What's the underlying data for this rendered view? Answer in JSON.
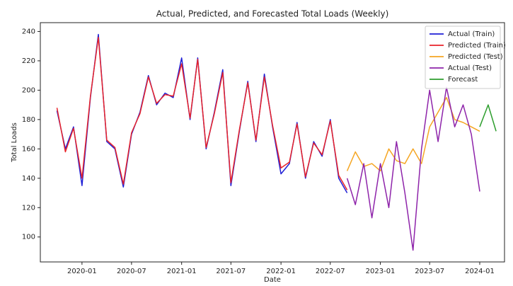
{
  "chart_data": {
    "type": "line",
    "title": "Actual, Predicted, and Forecasted Total Loads (Weekly)",
    "x_label": "Date",
    "y_label": "Total Loads",
    "xlim": [
      "2019-08",
      "2024-04"
    ],
    "xticks": [
      "2020-01",
      "2020-07",
      "2021-01",
      "2021-07",
      "2022-01",
      "2022-07",
      "2023-01",
      "2023-07",
      "2024-01"
    ],
    "ylim": [
      83,
      246
    ],
    "yticks": [
      100,
      120,
      140,
      160,
      180,
      200,
      220,
      240
    ],
    "legend": "upper right",
    "series": [
      {
        "name": "Actual (Train)",
        "color": "#1f1fd6",
        "x": [
          "2019-10",
          "2019-11",
          "2019-12",
          "2020-01",
          "2020-02",
          "2020-03",
          "2020-04",
          "2020-05",
          "2020-06",
          "2020-07",
          "2020-08",
          "2020-09",
          "2020-10",
          "2020-11",
          "2020-12",
          "2021-01",
          "2021-02",
          "2021-03",
          "2021-04",
          "2021-05",
          "2021-06",
          "2021-07",
          "2021-08",
          "2021-09",
          "2021-10",
          "2021-11",
          "2021-12",
          "2022-01",
          "2022-02",
          "2022-03",
          "2022-04",
          "2022-05",
          "2022-06",
          "2022-07",
          "2022-08",
          "2022-09"
        ],
        "values": [
          186,
          160,
          175,
          135,
          195,
          238,
          165,
          160,
          134,
          170,
          185,
          210,
          190,
          198,
          195,
          222,
          180,
          222,
          160,
          185,
          214,
          135,
          172,
          206,
          165,
          211,
          175,
          143,
          150,
          178,
          140,
          165,
          155,
          180,
          140,
          130
        ]
      },
      {
        "name": "Predicted (Train)",
        "color": "#e8232a",
        "x": [
          "2019-10",
          "2019-11",
          "2019-12",
          "2020-01",
          "2020-02",
          "2020-03",
          "2020-04",
          "2020-05",
          "2020-06",
          "2020-07",
          "2020-08",
          "2020-09",
          "2020-10",
          "2020-11",
          "2020-12",
          "2021-01",
          "2021-02",
          "2021-03",
          "2021-04",
          "2021-05",
          "2021-06",
          "2021-07",
          "2021-08",
          "2021-09",
          "2021-10",
          "2021-11",
          "2021-12",
          "2022-01",
          "2022-02",
          "2022-03",
          "2022-04",
          "2022-05",
          "2022-06",
          "2022-07",
          "2022-08",
          "2022-09"
        ],
        "values": [
          188,
          158,
          174,
          140,
          196,
          236,
          166,
          161,
          136,
          171,
          184,
          209,
          191,
          197,
          196,
          218,
          181,
          221,
          161,
          184,
          212,
          137,
          173,
          205,
          166,
          209,
          176,
          147,
          151,
          177,
          141,
          164,
          156,
          179,
          142,
          132
        ]
      },
      {
        "name": "Predicted (Test)",
        "color": "#f5a623",
        "x": [
          "2022-09",
          "2022-10",
          "2022-11",
          "2022-12",
          "2023-01",
          "2023-02",
          "2023-03",
          "2023-04",
          "2023-05",
          "2023-06",
          "2023-07",
          "2023-08",
          "2023-09",
          "2023-10",
          "2023-11",
          "2023-12",
          "2024-01"
        ],
        "values": [
          145,
          158,
          148,
          150,
          145,
          160,
          152,
          150,
          160,
          150,
          175,
          185,
          195,
          180,
          178,
          175,
          172
        ]
      },
      {
        "name": "Actual (Test)",
        "color": "#8e24aa",
        "x": [
          "2022-09",
          "2022-10",
          "2022-11",
          "2022-12",
          "2023-01",
          "2023-02",
          "2023-03",
          "2023-04",
          "2023-05",
          "2023-06",
          "2023-07",
          "2023-08",
          "2023-09",
          "2023-10",
          "2023-11",
          "2023-12",
          "2024-01"
        ],
        "values": [
          140,
          122,
          150,
          113,
          150,
          120,
          165,
          130,
          91,
          160,
          200,
          165,
          202,
          175,
          190,
          170,
          131
        ]
      },
      {
        "name": "Forecast",
        "color": "#2e9e2e",
        "x": [
          "2024-01",
          "2024-02",
          "2024-03"
        ],
        "values": [
          175,
          190,
          172
        ]
      }
    ]
  }
}
